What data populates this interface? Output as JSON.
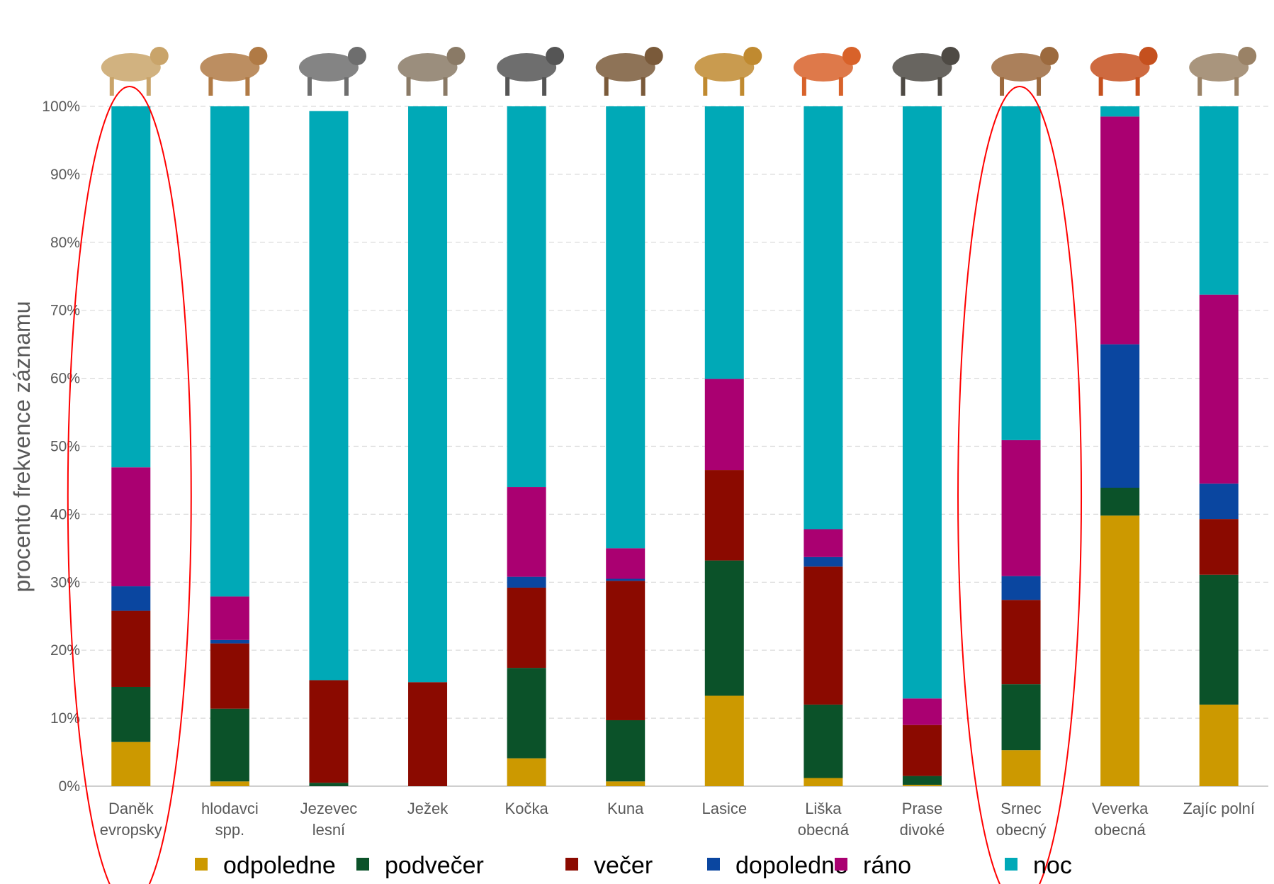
{
  "chart_data": {
    "type": "bar",
    "stacked": true,
    "ylabel": "procento frekvence záznamu",
    "ylim": [
      0,
      100
    ],
    "yticks": [
      "0%",
      "10%",
      "20%",
      "30%",
      "40%",
      "50%",
      "60%",
      "70%",
      "80%",
      "90%",
      "100%"
    ],
    "grid": "horizontal-dashed",
    "legend_position": "bottom",
    "categories": [
      [
        "Daněk",
        "evropsky"
      ],
      [
        "hlodavci",
        "spp."
      ],
      [
        "Jezevec",
        "lesní"
      ],
      [
        "Ježek"
      ],
      [
        "Kočka"
      ],
      [
        "Kuna"
      ],
      [
        "Lasice"
      ],
      [
        "Liška",
        "obecná"
      ],
      [
        "Prase",
        "divoké"
      ],
      [
        "Srnec",
        "obecný"
      ],
      [
        "Veverka",
        "obecná"
      ],
      [
        "Zajíc polní"
      ]
    ],
    "series": [
      {
        "name": "odpoledne",
        "color": "#CC9900",
        "values": [
          6.5,
          0.7,
          0,
          0,
          4.1,
          0.7,
          13.3,
          1.2,
          0.2,
          5.3,
          39.8,
          12.0
        ]
      },
      {
        "name": "podvečer",
        "color": "#0B5229",
        "values": [
          8.1,
          10.7,
          0.5,
          0,
          13.3,
          9.0,
          19.9,
          10.8,
          1.3,
          9.7,
          4.1,
          19.1
        ]
      },
      {
        "name": "večer",
        "color": "#8B0A00",
        "values": [
          11.2,
          9.6,
          15.1,
          15.3,
          11.8,
          20.5,
          13.3,
          20.3,
          7.5,
          12.4,
          0,
          8.2
        ]
      },
      {
        "name": "dopoledne",
        "color": "#0A46A0",
        "values": [
          3.6,
          0.5,
          0,
          0,
          1.6,
          0.3,
          0,
          1.4,
          0,
          3.5,
          21.1,
          5.2
        ]
      },
      {
        "name": "ráno",
        "color": "#AA0071",
        "values": [
          17.5,
          6.4,
          0,
          0,
          13.2,
          4.5,
          13.4,
          4.1,
          3.9,
          20.0,
          33.5,
          27.8
        ]
      },
      {
        "name": "noc",
        "color": "#00A9B7",
        "values": [
          53.1,
          72.1,
          83.7,
          84.7,
          56.0,
          65.0,
          40.1,
          62.2,
          87.1,
          49.1,
          1.5,
          27.7
        ]
      }
    ],
    "legend": [
      "odpoledne",
      "podvečer",
      "večer",
      "dopoledne",
      "ráno",
      "noc"
    ],
    "highlighted_categories": [
      "Daněk evropsky",
      "Srnec obecný"
    ],
    "highlight_color": "#FF0000",
    "animal_icons": [
      "fallow-deer-icon",
      "mouse-icon",
      "badger-icon",
      "hedgehog-icon",
      "cat-icon",
      "marten-icon",
      "weasel-icon",
      "fox-icon",
      "wild-boar-icon",
      "roe-deer-icon",
      "squirrel-icon",
      "hare-icon"
    ]
  }
}
